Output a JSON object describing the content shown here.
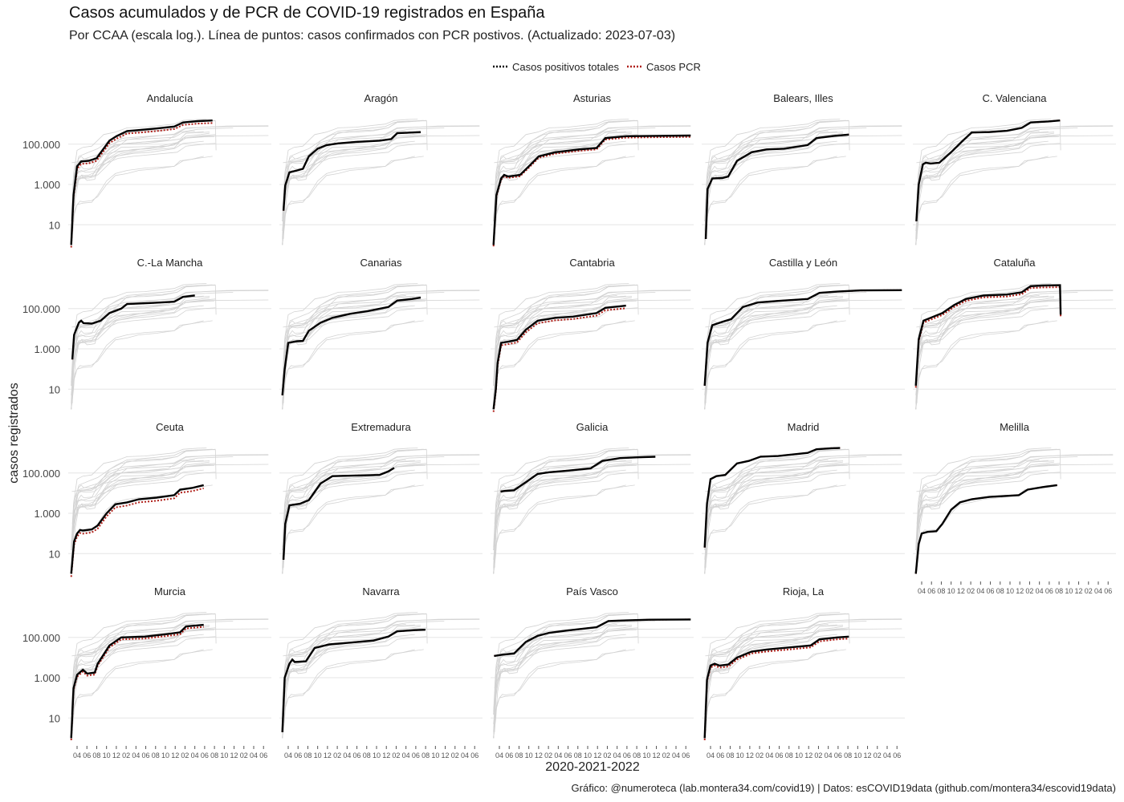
{
  "chart_data": {
    "type": "line",
    "title": "Casos acumulados y de PCR de COVID-19 registrados en España",
    "subtitle": "Por CCAA (escala log.). Línea de puntos: casos confirmados con PCR postivos. (Actualizado: 2023-07-03)",
    "xlabel": "2020-2021-2022",
    "ylabel": "casos registrados",
    "caption": "Gráfico: @numeroteca (lab.montera34.com/covid19) | Datos: esCOVID19data (github.com/montera34/escovid19data)",
    "y_scale": "log",
    "y_ticks": [
      {
        "value": 10,
        "label": "10"
      },
      {
        "value": 1000,
        "label": "1.000"
      },
      {
        "value": 100000,
        "label": "100.000"
      }
    ],
    "x_ticks": [
      "04",
      "06",
      "08",
      "10",
      "12",
      "02",
      "04",
      "06",
      "08",
      "10",
      "12",
      "02",
      "04",
      "06",
      "08",
      "10",
      "12",
      "02",
      "04",
      "06"
    ],
    "x_range": [
      "2020-02",
      "2023-07"
    ],
    "legend": {
      "position": "top",
      "entries": [
        {
          "label": "Casos positivos totales",
          "color": "#000000",
          "style": "solid"
        },
        {
          "label": "Casos PCR",
          "color": "#b0201a",
          "style": "dotted"
        }
      ]
    },
    "background_series_color": "#d3d3d3",
    "series": [
      {
        "name": "Andalucía",
        "pts": [
          [
            2020.15,
            1
          ],
          [
            2020.19,
            300
          ],
          [
            2020.25,
            8000
          ],
          [
            2020.32,
            14000
          ],
          [
            2020.45,
            15000
          ],
          [
            2020.58,
            20000
          ],
          [
            2020.7,
            60000
          ],
          [
            2020.8,
            150000
          ],
          [
            2020.92,
            250000
          ],
          [
            2021.1,
            450000
          ],
          [
            2021.3,
            500000
          ],
          [
            2021.6,
            600000
          ],
          [
            2021.9,
            750000
          ],
          [
            2022.05,
            1200000
          ],
          [
            2022.3,
            1400000
          ],
          [
            2022.55,
            1500000
          ]
        ],
        "pcr_offset": 0.75
      },
      {
        "name": "Aragón",
        "pts": [
          [
            2020.17,
            50
          ],
          [
            2020.2,
            900
          ],
          [
            2020.27,
            4000
          ],
          [
            2020.4,
            5000
          ],
          [
            2020.5,
            6000
          ],
          [
            2020.6,
            25000
          ],
          [
            2020.75,
            60000
          ],
          [
            2020.9,
            90000
          ],
          [
            2021.1,
            110000
          ],
          [
            2021.4,
            130000
          ],
          [
            2021.8,
            150000
          ],
          [
            2022.0,
            180000
          ],
          [
            2022.1,
            350000
          ],
          [
            2022.5,
            400000
          ]
        ],
        "pcr_offset": 1.0
      },
      {
        "name": "Asturias",
        "pts": [
          [
            2020.15,
            1
          ],
          [
            2020.2,
            300
          ],
          [
            2020.28,
            2000
          ],
          [
            2020.33,
            3000
          ],
          [
            2020.4,
            2500
          ],
          [
            2020.6,
            3000
          ],
          [
            2020.75,
            8000
          ],
          [
            2020.92,
            25000
          ],
          [
            2021.2,
            40000
          ],
          [
            2021.6,
            55000
          ],
          [
            2021.9,
            65000
          ],
          [
            2022.05,
            200000
          ],
          [
            2022.4,
            250000
          ],
          [
            2022.9,
            260000
          ],
          [
            2023.5,
            270000
          ]
        ],
        "pcr_offset": 0.85
      },
      {
        "name": "Balears, Illes",
        "pts": [
          [
            2020.17,
            2
          ],
          [
            2020.2,
            600
          ],
          [
            2020.28,
            2000
          ],
          [
            2020.45,
            2100
          ],
          [
            2020.55,
            2500
          ],
          [
            2020.7,
            15000
          ],
          [
            2020.95,
            40000
          ],
          [
            2021.2,
            55000
          ],
          [
            2021.5,
            60000
          ],
          [
            2021.9,
            90000
          ],
          [
            2022.05,
            200000
          ],
          [
            2022.35,
            260000
          ],
          [
            2022.6,
            300000
          ]
        ],
        "pcr_offset": 1.0
      },
      {
        "name": "C. Valenciana",
        "pts": [
          [
            2020.16,
            15
          ],
          [
            2020.2,
            1000
          ],
          [
            2020.27,
            10000
          ],
          [
            2020.32,
            12000
          ],
          [
            2020.4,
            11000
          ],
          [
            2020.55,
            12000
          ],
          [
            2020.75,
            40000
          ],
          [
            2020.95,
            150000
          ],
          [
            2021.1,
            380000
          ],
          [
            2021.4,
            400000
          ],
          [
            2021.7,
            460000
          ],
          [
            2021.95,
            650000
          ],
          [
            2022.1,
            1200000
          ],
          [
            2022.4,
            1350000
          ],
          [
            2022.6,
            1500000
          ]
        ],
        "pcr_offset": 1.0
      },
      {
        "name": "C.-La Mancha",
        "pts": [
          [
            2020.17,
            300
          ],
          [
            2020.2,
            5000
          ],
          [
            2020.28,
            20000
          ],
          [
            2020.32,
            25000
          ],
          [
            2020.36,
            19000
          ],
          [
            2020.5,
            18000
          ],
          [
            2020.65,
            25000
          ],
          [
            2020.8,
            60000
          ],
          [
            2021.0,
            100000
          ],
          [
            2021.1,
            170000
          ],
          [
            2021.5,
            190000
          ],
          [
            2021.9,
            220000
          ],
          [
            2022.05,
            380000
          ],
          [
            2022.25,
            450000
          ]
        ],
        "pcr_offset": 1.0
      },
      {
        "name": "Canarias",
        "pts": [
          [
            2020.15,
            5
          ],
          [
            2020.19,
            100
          ],
          [
            2020.25,
            2000
          ],
          [
            2020.4,
            2400
          ],
          [
            2020.5,
            2500
          ],
          [
            2020.6,
            8000
          ],
          [
            2020.8,
            20000
          ],
          [
            2021.0,
            35000
          ],
          [
            2021.3,
            55000
          ],
          [
            2021.6,
            75000
          ],
          [
            2021.95,
            120000
          ],
          [
            2022.1,
            250000
          ],
          [
            2022.35,
            300000
          ],
          [
            2022.5,
            350000
          ]
        ],
        "pcr_offset": 1.0
      },
      {
        "name": "Cantabria",
        "pts": [
          [
            2020.15,
            1
          ],
          [
            2020.19,
            10
          ],
          [
            2020.22,
            200
          ],
          [
            2020.28,
            2000
          ],
          [
            2020.4,
            2300
          ],
          [
            2020.55,
            2800
          ],
          [
            2020.7,
            9000
          ],
          [
            2020.9,
            25000
          ],
          [
            2021.2,
            35000
          ],
          [
            2021.5,
            40000
          ],
          [
            2021.9,
            60000
          ],
          [
            2022.05,
            110000
          ],
          [
            2022.3,
            130000
          ],
          [
            2022.4,
            140000
          ]
        ],
        "pcr_offset": 0.75
      },
      {
        "name": "Castilla y León",
        "pts": [
          [
            2020.15,
            15
          ],
          [
            2020.2,
            2000
          ],
          [
            2020.28,
            15000
          ],
          [
            2020.45,
            22000
          ],
          [
            2020.6,
            30000
          ],
          [
            2020.8,
            120000
          ],
          [
            2021.05,
            200000
          ],
          [
            2021.4,
            240000
          ],
          [
            2021.9,
            300000
          ],
          [
            2022.1,
            600000
          ],
          [
            2022.4,
            700000
          ],
          [
            2022.8,
            800000
          ],
          [
            2023.5,
            820000
          ]
        ],
        "pcr_offset": 1.0
      },
      {
        "name": "Cataluña",
        "pts": [
          [
            2020.15,
            15
          ],
          [
            2020.2,
            3000
          ],
          [
            2020.28,
            25000
          ],
          [
            2020.45,
            40000
          ],
          [
            2020.6,
            60000
          ],
          [
            2020.8,
            150000
          ],
          [
            2021.0,
            300000
          ],
          [
            2021.3,
            450000
          ],
          [
            2021.7,
            500000
          ],
          [
            2021.95,
            650000
          ],
          [
            2022.1,
            1300000
          ],
          [
            2022.3,
            1400000
          ],
          [
            2022.6,
            1450000
          ],
          [
            2022.61,
            50000
          ]
        ],
        "pcr_offset": 0.8
      },
      {
        "name": "Ceuta",
        "pts": [
          [
            2020.15,
            1
          ],
          [
            2020.2,
            40
          ],
          [
            2020.25,
            100
          ],
          [
            2020.3,
            150
          ],
          [
            2020.35,
            140
          ],
          [
            2020.5,
            160
          ],
          [
            2020.6,
            250
          ],
          [
            2020.75,
            1000
          ],
          [
            2020.9,
            2800
          ],
          [
            2021.1,
            3500
          ],
          [
            2021.3,
            5000
          ],
          [
            2021.6,
            6000
          ],
          [
            2021.9,
            8000
          ],
          [
            2022.0,
            15000
          ],
          [
            2022.2,
            18000
          ],
          [
            2022.4,
            25000
          ]
        ],
        "pcr_offset": 0.7
      },
      {
        "name": "Extremadura",
        "pts": [
          [
            2020.17,
            5
          ],
          [
            2020.2,
            300
          ],
          [
            2020.27,
            2500
          ],
          [
            2020.45,
            3000
          ],
          [
            2020.6,
            4500
          ],
          [
            2020.8,
            30000
          ],
          [
            2021.0,
            70000
          ],
          [
            2021.4,
            75000
          ],
          [
            2021.8,
            80000
          ],
          [
            2021.95,
            120000
          ],
          [
            2022.05,
            180000
          ]
        ],
        "pcr_offset": 1.0
      },
      {
        "name": "Galicia",
        "pts": [
          [
            2020.27,
            12000
          ],
          [
            2020.35,
            13000
          ],
          [
            2020.5,
            14000
          ],
          [
            2020.7,
            35000
          ],
          [
            2020.9,
            90000
          ],
          [
            2021.1,
            110000
          ],
          [
            2021.4,
            130000
          ],
          [
            2021.8,
            170000
          ],
          [
            2022.0,
            400000
          ],
          [
            2022.3,
            550000
          ],
          [
            2022.6,
            600000
          ],
          [
            2022.9,
            640000
          ]
        ],
        "pcr_offset": 1.0
      },
      {
        "name": "Madrid",
        "pts": [
          [
            2020.15,
            20
          ],
          [
            2020.19,
            3000
          ],
          [
            2020.25,
            50000
          ],
          [
            2020.35,
            70000
          ],
          [
            2020.5,
            80000
          ],
          [
            2020.7,
            300000
          ],
          [
            2020.9,
            400000
          ],
          [
            2021.1,
            650000
          ],
          [
            2021.4,
            700000
          ],
          [
            2021.9,
            1000000
          ],
          [
            2022.05,
            1500000
          ],
          [
            2022.3,
            1700000
          ],
          [
            2022.45,
            1750000
          ]
        ],
        "pcr_offset": 1.0
      },
      {
        "name": "Melilla",
        "pts": [
          [
            2020.15,
            1
          ],
          [
            2020.2,
            30
          ],
          [
            2020.25,
            100
          ],
          [
            2020.35,
            120
          ],
          [
            2020.5,
            130
          ],
          [
            2020.6,
            300
          ],
          [
            2020.75,
            1500
          ],
          [
            2020.9,
            3500
          ],
          [
            2021.1,
            5000
          ],
          [
            2021.4,
            6500
          ],
          [
            2021.9,
            8000
          ],
          [
            2022.05,
            15000
          ],
          [
            2022.3,
            20000
          ],
          [
            2022.55,
            25000
          ]
        ],
        "pcr_offset": 1.0
      },
      {
        "name": "Murcia",
        "pts": [
          [
            2020.15,
            1
          ],
          [
            2020.19,
            300
          ],
          [
            2020.25,
            1400
          ],
          [
            2020.35,
            2500
          ],
          [
            2020.42,
            1600
          ],
          [
            2020.55,
            1800
          ],
          [
            2020.6,
            5000
          ],
          [
            2020.8,
            40000
          ],
          [
            2021.0,
            100000
          ],
          [
            2021.4,
            110000
          ],
          [
            2021.8,
            150000
          ],
          [
            2022.0,
            180000
          ],
          [
            2022.1,
            350000
          ],
          [
            2022.4,
            420000
          ]
        ],
        "pcr_offset": 0.8
      },
      {
        "name": "Navarra",
        "pts": [
          [
            2020.15,
            2
          ],
          [
            2020.19,
            1000
          ],
          [
            2020.27,
            5000
          ],
          [
            2020.32,
            8000
          ],
          [
            2020.36,
            6000
          ],
          [
            2020.55,
            6500
          ],
          [
            2020.7,
            30000
          ],
          [
            2020.95,
            45000
          ],
          [
            2021.3,
            55000
          ],
          [
            2021.7,
            70000
          ],
          [
            2021.95,
            110000
          ],
          [
            2022.1,
            200000
          ],
          [
            2022.4,
            230000
          ],
          [
            2022.58,
            240000
          ]
        ],
        "pcr_offset": 1.0
      },
      {
        "name": "País Vasco",
        "pts": [
          [
            2020.16,
            12000
          ],
          [
            2020.3,
            14000
          ],
          [
            2020.5,
            16000
          ],
          [
            2020.7,
            60000
          ],
          [
            2020.9,
            120000
          ],
          [
            2021.1,
            170000
          ],
          [
            2021.4,
            220000
          ],
          [
            2021.9,
            320000
          ],
          [
            2022.1,
            650000
          ],
          [
            2022.4,
            700000
          ],
          [
            2022.8,
            760000
          ],
          [
            2023.5,
            780000
          ]
        ],
        "pcr_offset": 1.0
      },
      {
        "name": "Rioja, La",
        "pts": [
          [
            2020.15,
            1
          ],
          [
            2020.19,
            800
          ],
          [
            2020.25,
            4000
          ],
          [
            2020.32,
            5000
          ],
          [
            2020.4,
            4000
          ],
          [
            2020.55,
            4500
          ],
          [
            2020.7,
            10000
          ],
          [
            2020.95,
            20000
          ],
          [
            2021.2,
            25000
          ],
          [
            2021.6,
            32000
          ],
          [
            2021.95,
            40000
          ],
          [
            2022.1,
            80000
          ],
          [
            2022.4,
            100000
          ],
          [
            2022.6,
            110000
          ]
        ],
        "pcr_offset": 0.8
      }
    ]
  }
}
